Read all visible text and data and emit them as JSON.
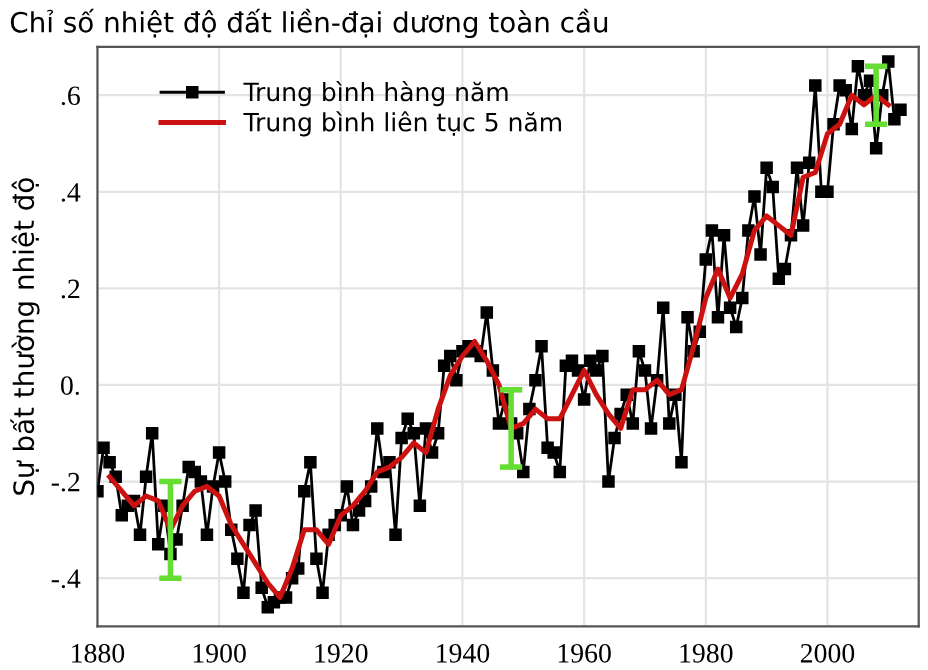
{
  "chart_data": {
    "type": "line",
    "title": "Chỉ số nhiệt độ đất liền-đại dương toàn cầu",
    "ylabel": "Sự bất thường nhiệt độ",
    "xlim": [
      1880,
      2015
    ],
    "xticks": [
      1880,
      1900,
      1920,
      1940,
      1960,
      1980,
      2000
    ],
    "ylim": [
      -0.5,
      0.7
    ],
    "yticks": [
      {
        "value": -0.4,
        "label": "-.4"
      },
      {
        "value": -0.2,
        "label": "-.2"
      },
      {
        "value": 0,
        "label": "0."
      },
      {
        "value": 0.2,
        "label": ".2"
      },
      {
        "value": 0.4,
        "label": ".4"
      },
      {
        "value": 0.6,
        "label": ".6"
      }
    ],
    "grid": true,
    "legend": "top left",
    "series": [
      {
        "name": "Trung bình hàng năm",
        "color": "#000000",
        "marker": "square",
        "x": [
          1880,
          1881,
          1882,
          1883,
          1884,
          1885,
          1886,
          1887,
          1888,
          1889,
          1890,
          1891,
          1892,
          1893,
          1894,
          1895,
          1896,
          1897,
          1898,
          1899,
          1900,
          1901,
          1902,
          1903,
          1904,
          1905,
          1906,
          1907,
          1908,
          1909,
          1910,
          1911,
          1912,
          1913,
          1914,
          1915,
          1916,
          1917,
          1918,
          1919,
          1920,
          1921,
          1922,
          1923,
          1924,
          1925,
          1926,
          1927,
          1928,
          1929,
          1930,
          1931,
          1932,
          1933,
          1934,
          1935,
          1936,
          1937,
          1938,
          1939,
          1940,
          1941,
          1942,
          1943,
          1944,
          1945,
          1946,
          1947,
          1948,
          1949,
          1950,
          1951,
          1952,
          1953,
          1954,
          1955,
          1956,
          1957,
          1958,
          1959,
          1960,
          1961,
          1962,
          1963,
          1964,
          1965,
          1966,
          1967,
          1968,
          1969,
          1970,
          1971,
          1972,
          1973,
          1974,
          1975,
          1976,
          1977,
          1978,
          1979,
          1980,
          1981,
          1982,
          1983,
          1984,
          1985,
          1986,
          1987,
          1988,
          1989,
          1990,
          1991,
          1992,
          1993,
          1994,
          1995,
          1996,
          1997,
          1998,
          1999,
          2000,
          2001,
          2002,
          2003,
          2004,
          2005,
          2006,
          2007,
          2008,
          2009,
          2010,
          2011,
          2012
        ],
        "values": [
          -0.22,
          -0.13,
          -0.16,
          -0.19,
          -0.27,
          -0.25,
          -0.24,
          -0.31,
          -0.19,
          -0.1,
          -0.33,
          -0.25,
          -0.35,
          -0.32,
          -0.25,
          -0.17,
          -0.18,
          -0.2,
          -0.31,
          -0.21,
          -0.14,
          -0.2,
          -0.3,
          -0.36,
          -0.43,
          -0.29,
          -0.26,
          -0.42,
          -0.46,
          -0.45,
          -0.44,
          -0.44,
          -0.4,
          -0.38,
          -0.22,
          -0.16,
          -0.36,
          -0.43,
          -0.31,
          -0.29,
          -0.27,
          -0.21,
          -0.29,
          -0.26,
          -0.24,
          -0.21,
          -0.09,
          -0.18,
          -0.16,
          -0.31,
          -0.11,
          -0.07,
          -0.1,
          -0.25,
          -0.09,
          -0.14,
          -0.1,
          0.04,
          0.06,
          0.01,
          0.07,
          0.08,
          0.07,
          0.06,
          0.15,
          0.03,
          -0.08,
          -0.03,
          -0.08,
          -0.1,
          -0.18,
          -0.05,
          0.01,
          0.08,
          -0.13,
          -0.14,
          -0.18,
          0.04,
          0.05,
          0.03,
          -0.03,
          0.05,
          0.03,
          0.06,
          -0.2,
          -0.11,
          -0.06,
          -0.02,
          -0.08,
          0.07,
          0.03,
          -0.09,
          0.01,
          0.16,
          -0.08,
          -0.02,
          -0.16,
          0.14,
          0.07,
          0.11,
          0.26,
          0.32,
          0.14,
          0.31,
          0.16,
          0.12,
          0.18,
          0.32,
          0.39,
          0.27,
          0.45,
          0.41,
          0.22,
          0.24,
          0.31,
          0.45,
          0.33,
          0.46,
          0.62,
          0.4,
          0.4,
          0.54,
          0.62,
          0.61,
          0.53,
          0.66,
          0.6,
          0.63,
          0.49,
          0.6,
          0.67,
          0.55,
          0.57
        ]
      },
      {
        "name": "Trung bình liên tục 5 năm",
        "color": "#cc1111",
        "marker": "none",
        "x": [
          1882,
          1884,
          1886,
          1888,
          1890,
          1892,
          1894,
          1896,
          1898,
          1900,
          1902,
          1904,
          1906,
          1908,
          1910,
          1912,
          1914,
          1916,
          1918,
          1920,
          1922,
          1924,
          1926,
          1928,
          1930,
          1932,
          1934,
          1936,
          1938,
          1940,
          1942,
          1944,
          1946,
          1948,
          1950,
          1952,
          1954,
          1956,
          1958,
          1960,
          1962,
          1964,
          1966,
          1968,
          1970,
          1972,
          1974,
          1976,
          1978,
          1980,
          1982,
          1984,
          1986,
          1988,
          1990,
          1992,
          1994,
          1996,
          1998,
          2000,
          2002,
          2004,
          2006,
          2008,
          2010
        ],
        "values": [
          -0.19,
          -0.22,
          -0.25,
          -0.23,
          -0.24,
          -0.3,
          -0.25,
          -0.22,
          -0.21,
          -0.23,
          -0.29,
          -0.33,
          -0.37,
          -0.41,
          -0.44,
          -0.38,
          -0.3,
          -0.3,
          -0.33,
          -0.27,
          -0.25,
          -0.22,
          -0.18,
          -0.17,
          -0.15,
          -0.12,
          -0.14,
          -0.05,
          0.02,
          0.06,
          0.09,
          0.05,
          0.0,
          -0.09,
          -0.08,
          -0.05,
          -0.07,
          -0.07,
          -0.02,
          0.03,
          -0.02,
          -0.06,
          -0.09,
          -0.01,
          -0.01,
          0.01,
          -0.02,
          -0.01,
          0.08,
          0.18,
          0.24,
          0.18,
          0.23,
          0.32,
          0.35,
          0.33,
          0.31,
          0.43,
          0.44,
          0.52,
          0.54,
          0.6,
          0.58,
          0.6,
          0.58
        ],
        "errors": [
          null,
          null,
          null,
          null,
          null,
          0.1,
          null,
          null,
          null,
          null,
          null,
          null,
          null,
          null,
          null,
          null,
          null,
          null,
          null,
          null,
          null,
          null,
          null,
          null,
          null,
          null,
          null,
          null,
          null,
          null,
          null,
          null,
          null,
          0.08,
          null,
          null,
          null,
          null,
          null,
          null,
          null,
          null,
          null,
          null,
          null,
          null,
          null,
          null,
          null,
          null,
          null,
          null,
          null,
          null,
          null,
          null,
          null,
          null,
          null,
          null,
          null,
          null,
          null,
          0.06,
          null
        ]
      }
    ]
  }
}
